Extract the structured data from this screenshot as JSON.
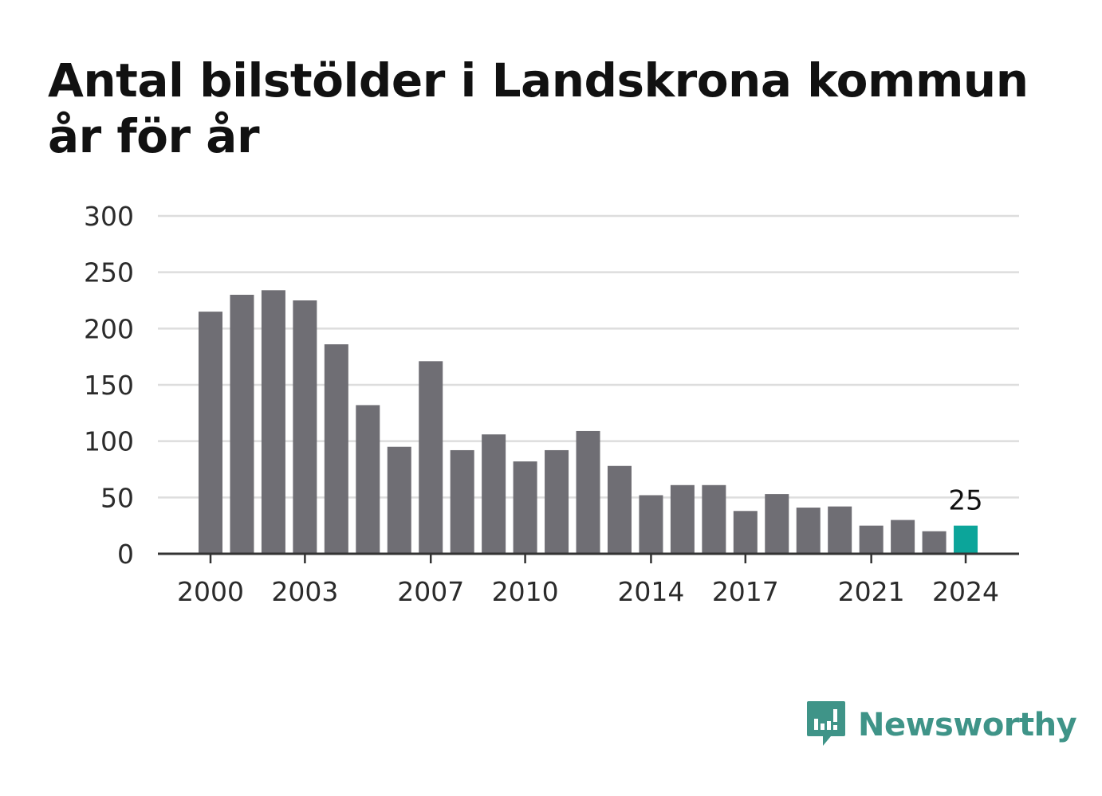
{
  "title": "Antal bilstölder i Landskrona kommun år för år",
  "colors": {
    "bar": "#6f6e74",
    "highlight": "#0ca59a",
    "grid": "#dddddd",
    "axis": "#333333",
    "logo": "#3f9488"
  },
  "brand": {
    "name": "Newsworthy",
    "icon": "bar-chart-speech-bubble-icon"
  },
  "chart_data": {
    "type": "bar",
    "title": "Antal bilstölder i Landskrona kommun år för år",
    "xlabel": "",
    "ylabel": "",
    "ylim": [
      0,
      300
    ],
    "y_ticks": [
      0,
      50,
      100,
      150,
      200,
      250,
      300
    ],
    "x_tick_labels": [
      "2000",
      "2003",
      "2007",
      "2010",
      "2014",
      "2017",
      "2021",
      "2024"
    ],
    "grid": true,
    "categories": [
      "2000",
      "2001",
      "2002",
      "2003",
      "2004",
      "2005",
      "2006",
      "2007",
      "2008",
      "2009",
      "2010",
      "2011",
      "2012",
      "2013",
      "2014",
      "2015",
      "2016",
      "2017",
      "2018",
      "2019",
      "2020",
      "2021",
      "2022",
      "2023",
      "2024"
    ],
    "values": [
      215,
      230,
      234,
      225,
      186,
      132,
      95,
      171,
      92,
      106,
      82,
      92,
      109,
      78,
      52,
      61,
      61,
      38,
      53,
      41,
      42,
      25,
      30,
      20,
      25
    ],
    "highlight": {
      "category": "2024",
      "label": "25"
    }
  }
}
